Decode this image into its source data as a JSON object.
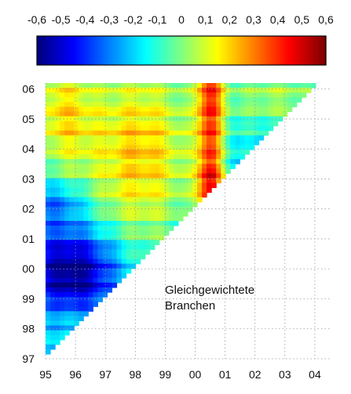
{
  "chart_data": {
    "type": "heatmap",
    "title": "",
    "annotation": [
      "Gleichgewichtete",
      "Branchen"
    ],
    "x_ticks": [
      "95",
      "96",
      "97",
      "98",
      "99",
      "00",
      "01",
      "02",
      "03",
      "04"
    ],
    "y_ticks": [
      "97",
      "98",
      "99",
      "00",
      "01",
      "02",
      "03",
      "04",
      "05",
      "06"
    ],
    "x_range": [
      1995,
      2004.5
    ],
    "y_range": [
      1997,
      2006.2
    ],
    "colorbar": {
      "range": [
        -0.6,
        0.6
      ],
      "tick_labels": [
        "-0,6",
        "-0,5",
        "-0,4",
        "-0,3",
        "-0,2",
        "-0,1",
        "0",
        "0,1",
        "0,2",
        "0,3",
        "0,4",
        "0,5",
        "0,6"
      ],
      "colormap": "jet"
    },
    "grid": true,
    "region": "upper-left triangle (start year x, end year y, y > x + 2)",
    "value_profile": {
      "description": "approximate values read from colors",
      "strongest_negative": -0.55,
      "strongest_negative_near": {
        "x": 1995.5,
        "y": 2000
      },
      "strongest_positive": 0.35,
      "strongest_positive_near": {
        "x": 2000.5,
        "y": 2002.8
      }
    }
  }
}
